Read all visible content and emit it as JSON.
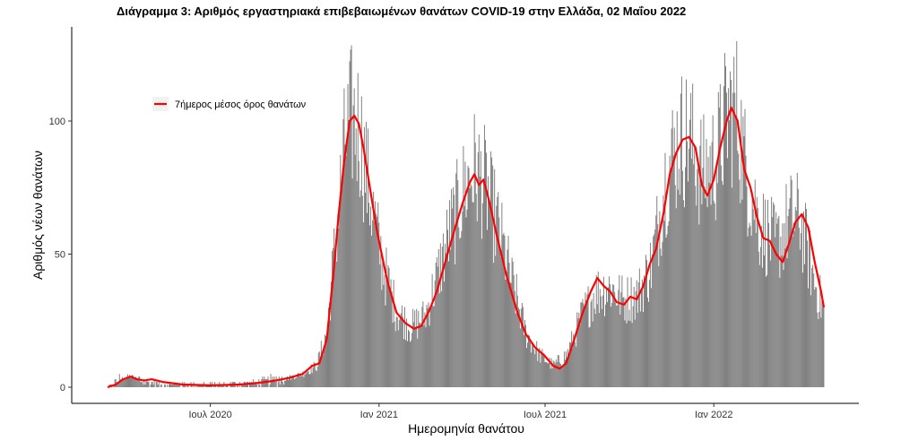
{
  "chart_data": {
    "type": "bar",
    "title": "Διάγραμμα 3: Αριθμός εργαστηριακά επιβεβαιωμένων θανάτων COVID-19 στην Ελλάδα, 02 Μαΐου 2022",
    "xlabel": "Ημερομηνία θανάτου",
    "ylabel": "Αριθμός νέων θανάτων",
    "x_range": [
      "2020-03-11",
      "2022-05-01"
    ],
    "ylim": [
      0,
      130
    ],
    "y_ticks": [
      0,
      50,
      100
    ],
    "x_ticks": [
      {
        "date": "2020-07-01",
        "label": "Ιουλ 2020"
      },
      {
        "date": "2021-01-01",
        "label": "Ιαν 2021"
      },
      {
        "date": "2021-07-01",
        "label": "Ιουλ 2021"
      },
      {
        "date": "2022-01-01",
        "label": "Ιαν 2022"
      }
    ],
    "grid": false,
    "legend": {
      "position": "top-left",
      "entries": [
        "7ήμερος μέσος όρος θανάτων"
      ]
    },
    "series": [
      {
        "type": "bar",
        "color": "#7a7a7a",
        "description": "daily deaths, piecewise-linear envelope (date, approx. daily deaths)",
        "trend": [
          [
            "2020-03-11",
            0
          ],
          [
            "2020-03-25",
            3
          ],
          [
            "2020-04-05",
            4
          ],
          [
            "2020-04-20",
            2
          ],
          [
            "2020-05-10",
            1
          ],
          [
            "2020-07-20",
            1
          ],
          [
            "2020-08-20",
            1.5
          ],
          [
            "2020-09-20",
            3
          ],
          [
            "2020-10-10",
            5
          ],
          [
            "2020-10-25",
            8
          ],
          [
            "2020-11-05",
            20
          ],
          [
            "2020-11-15",
            55
          ],
          [
            "2020-11-25",
            90
          ],
          [
            "2020-12-02",
            99
          ],
          [
            "2020-12-10",
            96
          ],
          [
            "2020-12-20",
            75
          ],
          [
            "2021-01-05",
            45
          ],
          [
            "2021-01-20",
            28
          ],
          [
            "2021-02-05",
            22
          ],
          [
            "2021-02-20",
            26
          ],
          [
            "2021-03-05",
            40
          ],
          [
            "2021-03-20",
            58
          ],
          [
            "2021-04-05",
            74
          ],
          [
            "2021-04-15",
            80
          ],
          [
            "2021-04-25",
            76
          ],
          [
            "2021-05-10",
            60
          ],
          [
            "2021-05-25",
            40
          ],
          [
            "2021-06-10",
            20
          ],
          [
            "2021-06-25",
            12
          ],
          [
            "2021-07-10",
            8
          ],
          [
            "2021-07-25",
            12
          ],
          [
            "2021-08-10",
            26
          ],
          [
            "2021-08-25",
            35
          ],
          [
            "2021-09-10",
            37
          ],
          [
            "2021-09-25",
            32
          ],
          [
            "2021-10-10",
            34
          ],
          [
            "2021-10-25",
            45
          ],
          [
            "2021-11-10",
            78
          ],
          [
            "2021-11-25",
            92
          ],
          [
            "2021-12-05",
            92
          ],
          [
            "2021-12-20",
            78
          ],
          [
            "2022-01-05",
            85
          ],
          [
            "2022-01-15",
            100
          ],
          [
            "2022-01-25",
            104
          ],
          [
            "2022-02-05",
            80
          ],
          [
            "2022-02-20",
            60
          ],
          [
            "2022-03-10",
            52
          ],
          [
            "2022-03-25",
            62
          ],
          [
            "2022-04-05",
            62
          ],
          [
            "2022-04-20",
            40
          ],
          [
            "2022-05-01",
            28
          ]
        ]
      },
      {
        "name": "7ήμερος μέσος όρος θανάτων",
        "type": "line",
        "color": "#ff0000",
        "points": [
          [
            "2020-03-11",
            0
          ],
          [
            "2020-03-20",
            1
          ],
          [
            "2020-03-28",
            3
          ],
          [
            "2020-04-05",
            4
          ],
          [
            "2020-04-12",
            3
          ],
          [
            "2020-04-20",
            2.5
          ],
          [
            "2020-04-28",
            3
          ],
          [
            "2020-05-10",
            2
          ],
          [
            "2020-06-01",
            1
          ],
          [
            "2020-07-01",
            0.7
          ],
          [
            "2020-08-01",
            1
          ],
          [
            "2020-08-20",
            1.5
          ],
          [
            "2020-09-10",
            2.5
          ],
          [
            "2020-09-25",
            3.5
          ],
          [
            "2020-10-10",
            5
          ],
          [
            "2020-10-20",
            8
          ],
          [
            "2020-10-28",
            9
          ],
          [
            "2020-11-05",
            18
          ],
          [
            "2020-11-12",
            42
          ],
          [
            "2020-11-18",
            65
          ],
          [
            "2020-11-24",
            85
          ],
          [
            "2020-11-30",
            100
          ],
          [
            "2020-12-05",
            102
          ],
          [
            "2020-12-10",
            99
          ],
          [
            "2020-12-15",
            90
          ],
          [
            "2020-12-22",
            75
          ],
          [
            "2020-12-30",
            58
          ],
          [
            "2021-01-10",
            40
          ],
          [
            "2021-01-20",
            28
          ],
          [
            "2021-01-30",
            24
          ],
          [
            "2021-02-08",
            22
          ],
          [
            "2021-02-16",
            23
          ],
          [
            "2021-02-25",
            29
          ],
          [
            "2021-03-05",
            36
          ],
          [
            "2021-03-15",
            48
          ],
          [
            "2021-03-25",
            60
          ],
          [
            "2021-04-03",
            70
          ],
          [
            "2021-04-10",
            77
          ],
          [
            "2021-04-15",
            80
          ],
          [
            "2021-04-20",
            76
          ],
          [
            "2021-04-25",
            78
          ],
          [
            "2021-05-01",
            70
          ],
          [
            "2021-05-10",
            56
          ],
          [
            "2021-05-20",
            42
          ],
          [
            "2021-06-01",
            28
          ],
          [
            "2021-06-10",
            20
          ],
          [
            "2021-06-20",
            15
          ],
          [
            "2021-06-30",
            12
          ],
          [
            "2021-07-10",
            8
          ],
          [
            "2021-07-17",
            7
          ],
          [
            "2021-07-24",
            9
          ],
          [
            "2021-08-01",
            17
          ],
          [
            "2021-08-10",
            27
          ],
          [
            "2021-08-20",
            36
          ],
          [
            "2021-08-27",
            41
          ],
          [
            "2021-09-03",
            38
          ],
          [
            "2021-09-10",
            36
          ],
          [
            "2021-09-17",
            32
          ],
          [
            "2021-09-25",
            31
          ],
          [
            "2021-10-02",
            34
          ],
          [
            "2021-10-09",
            33
          ],
          [
            "2021-10-16",
            38
          ],
          [
            "2021-10-23",
            46
          ],
          [
            "2021-10-30",
            52
          ],
          [
            "2021-11-07",
            65
          ],
          [
            "2021-11-14",
            80
          ],
          [
            "2021-11-21",
            88
          ],
          [
            "2021-11-28",
            93
          ],
          [
            "2021-12-05",
            94
          ],
          [
            "2021-12-12",
            90
          ],
          [
            "2021-12-19",
            76
          ],
          [
            "2021-12-25",
            72
          ],
          [
            "2022-01-01",
            78
          ],
          [
            "2022-01-08",
            90
          ],
          [
            "2022-01-15",
            100
          ],
          [
            "2022-01-20",
            105
          ],
          [
            "2022-01-27",
            100
          ],
          [
            "2022-02-03",
            82
          ],
          [
            "2022-02-10",
            75
          ],
          [
            "2022-02-17",
            64
          ],
          [
            "2022-02-24",
            56
          ],
          [
            "2022-03-03",
            55
          ],
          [
            "2022-03-10",
            50
          ],
          [
            "2022-03-17",
            47
          ],
          [
            "2022-03-24",
            54
          ],
          [
            "2022-03-31",
            62
          ],
          [
            "2022-04-07",
            65
          ],
          [
            "2022-04-14",
            60
          ],
          [
            "2022-04-21",
            47
          ],
          [
            "2022-04-28",
            36
          ],
          [
            "2022-05-01",
            30
          ]
        ]
      }
    ]
  }
}
